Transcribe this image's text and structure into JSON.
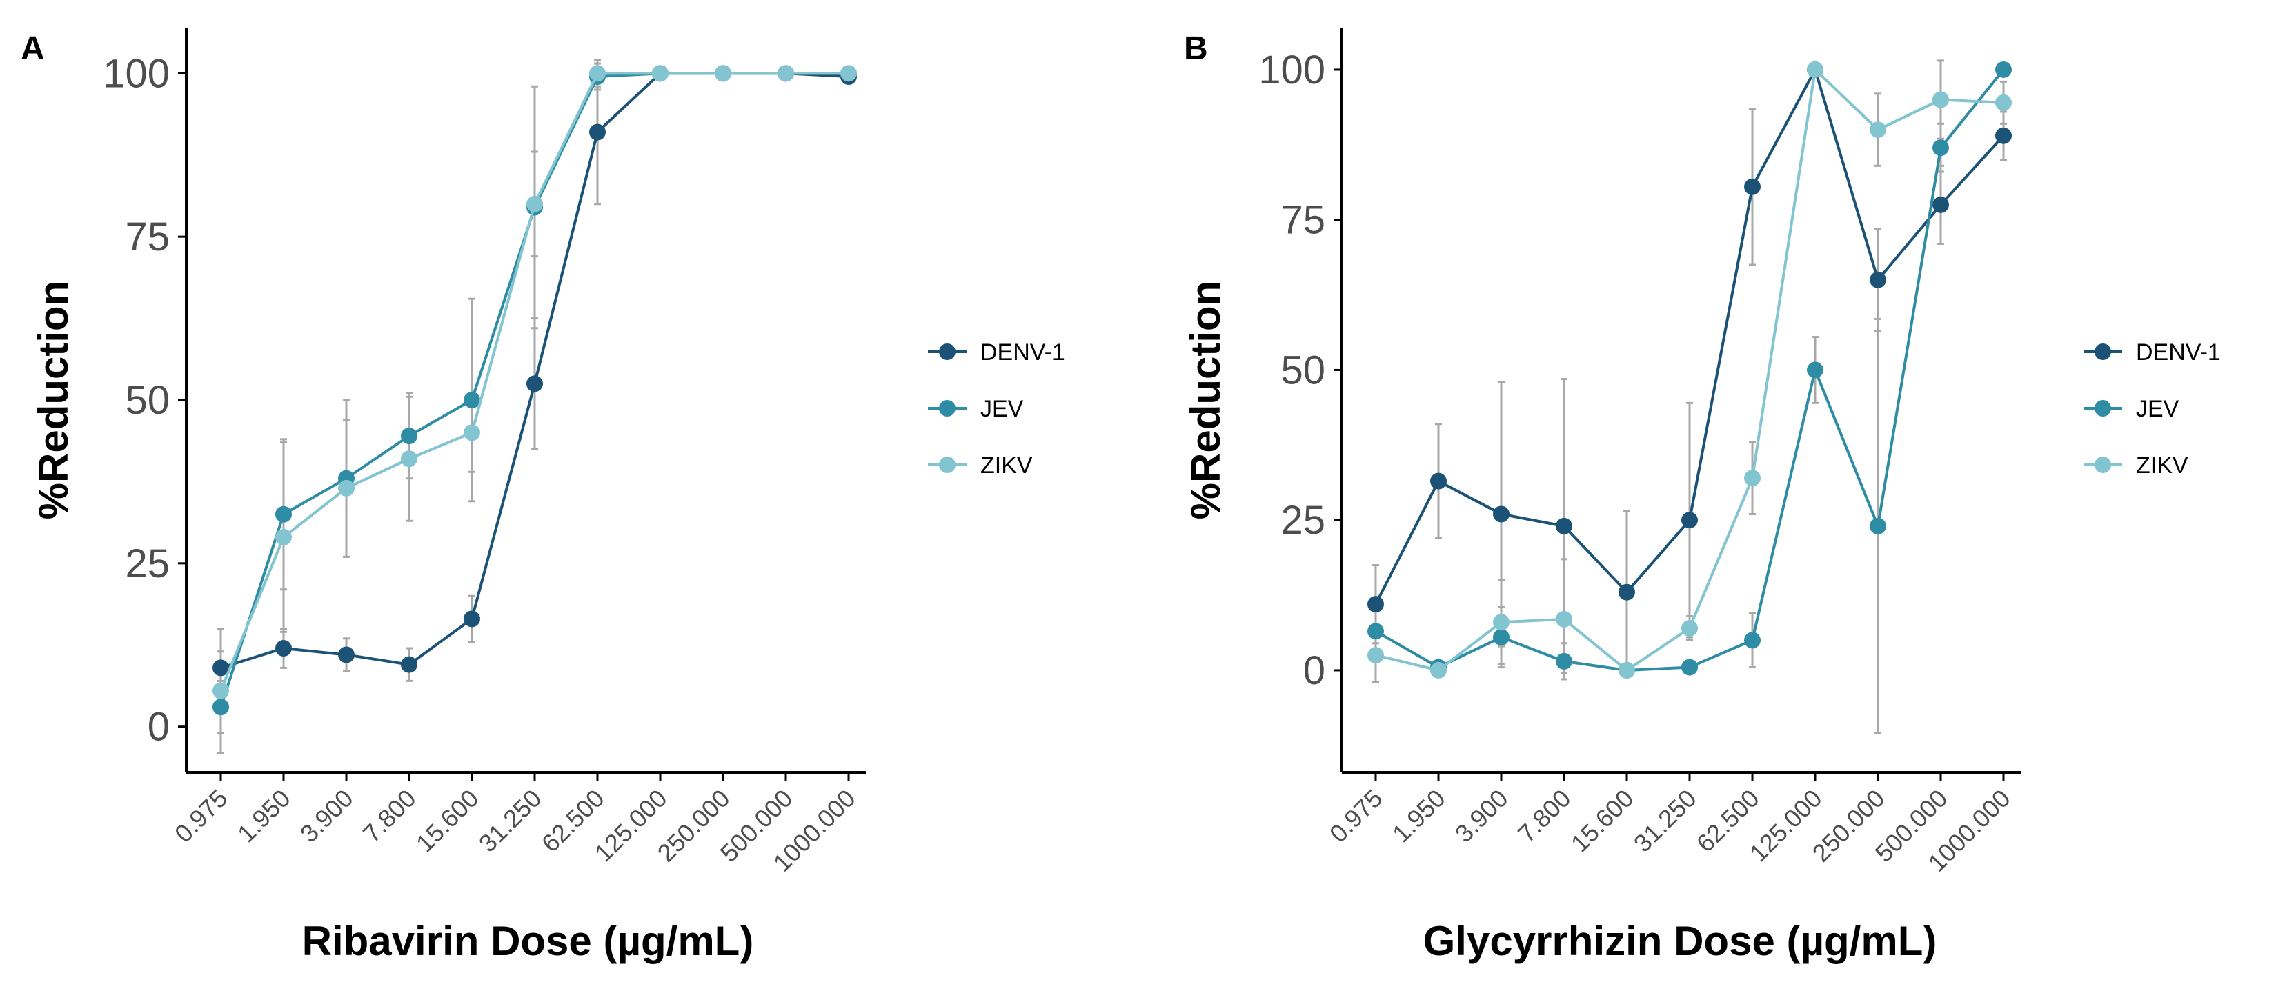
{
  "colors": {
    "DENV-1": "#1b5276",
    "JEV": "#2e8ca4",
    "ZIKV": "#82c4cf",
    "errorbar": "#a8a8a8",
    "axis": "#000000"
  },
  "chart_data": [
    {
      "type": "line",
      "panel_label": "A",
      "xlabel": "Ribavirin Dose (µg/mL)",
      "ylabel": "%Reduction",
      "categories": [
        "0.975",
        "1.950",
        "3.900",
        "7.800",
        "15.600",
        "31.250",
        "62.500",
        "125.000",
        "250.000",
        "500.000",
        "1000.000"
      ],
      "y_ticks": [
        "0",
        "25",
        "50",
        "75",
        "100"
      ],
      "ylim": [
        -7,
        107
      ],
      "legend": [
        "DENV-1",
        "JEV",
        "ZIKV"
      ],
      "series": [
        {
          "name": "DENV-1",
          "values": [
            9,
            12,
            11,
            9.5,
            16.5,
            52.5,
            91,
            100,
            100,
            100,
            99.5
          ],
          "err": [
            2.5,
            3,
            2.5,
            2.5,
            3.5,
            10,
            11,
            0,
            0,
            0,
            0.5
          ]
        },
        {
          "name": "JEV",
          "values": [
            3,
            32.5,
            38,
            44.5,
            50,
            79.5,
            99.5,
            100,
            100,
            100,
            100
          ],
          "err": [
            4,
            11.5,
            12,
            6.5,
            15.5,
            18.5,
            2,
            0,
            0,
            0,
            0
          ]
        },
        {
          "name": "ZIKV",
          "values": [
            5.5,
            29,
            36.5,
            41,
            45,
            80,
            100,
            100,
            100,
            100,
            100
          ],
          "err": [
            9.5,
            14.5,
            10.5,
            9.5,
            6,
            8,
            2,
            0,
            0,
            0,
            0
          ]
        }
      ]
    },
    {
      "type": "line",
      "panel_label": "B",
      "xlabel": "Glycyrrhizin Dose (µg/mL)",
      "ylabel": "%Reduction",
      "categories": [
        "0.975",
        "1.950",
        "3.900",
        "7.800",
        "15.600",
        "31.250",
        "62.500",
        "125.000",
        "250.000",
        "500.000",
        "1000.000"
      ],
      "y_ticks": [
        "0",
        "25",
        "50",
        "75",
        "100"
      ],
      "ylim": [
        -17,
        107
      ],
      "legend": [
        "DENV-1",
        "JEV",
        "ZIKV"
      ],
      "series": [
        {
          "name": "DENV-1",
          "values": [
            11,
            31.5,
            26,
            24,
            13,
            25,
            80.5,
            100,
            65,
            77.5,
            89
          ],
          "err": [
            6.5,
            9.5,
            22,
            24.5,
            13.5,
            19.5,
            13,
            0,
            8.5,
            6.5,
            4
          ]
        },
        {
          "name": "JEV",
          "values": [
            6.5,
            0.5,
            5.5,
            1.5,
            0,
            0.5,
            5,
            50,
            24,
            87,
            100
          ],
          "err": [
            5,
            1,
            5,
            3,
            0.5,
            1,
            4.5,
            5.5,
            34.5,
            4,
            0
          ]
        },
        {
          "name": "ZIKV",
          "values": [
            2.5,
            0,
            8,
            8.5,
            0,
            7,
            32,
            100,
            90,
            95,
            94.5
          ],
          "err": [
            4.5,
            1,
            7,
            10,
            1,
            2,
            6,
            0,
            6,
            6.5,
            3.5
          ]
        }
      ]
    }
  ]
}
